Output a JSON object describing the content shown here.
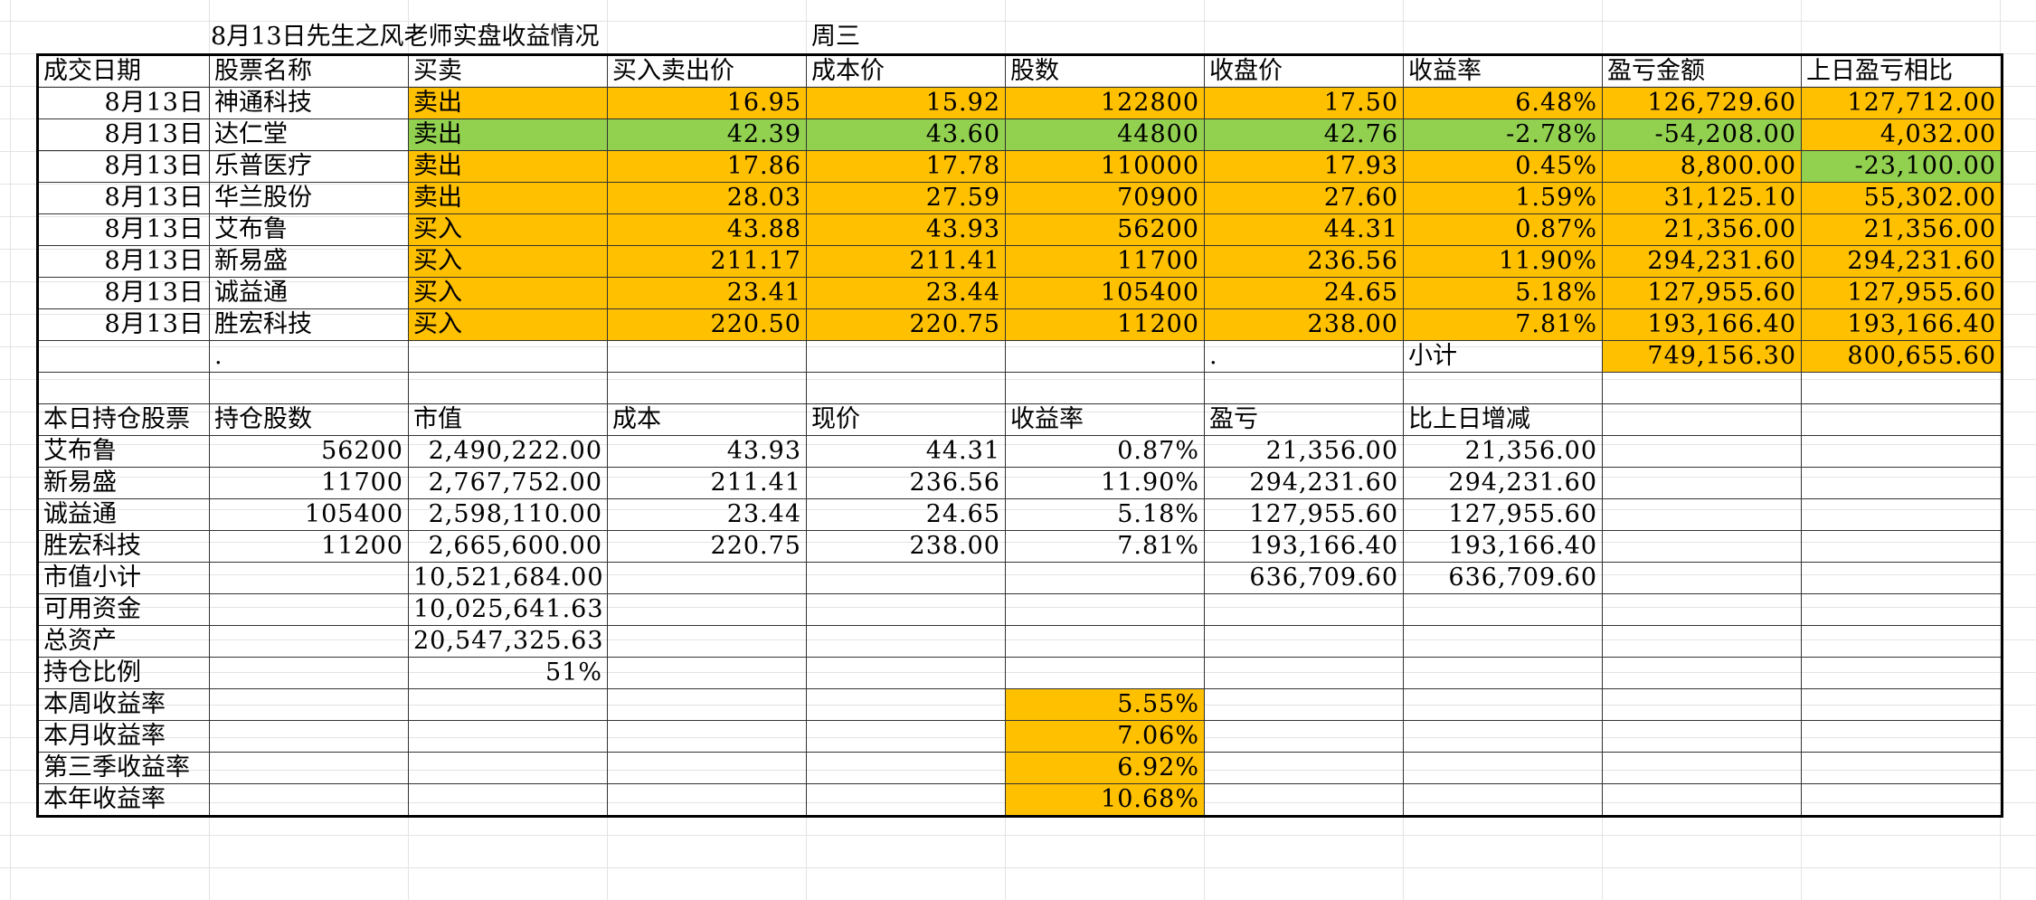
{
  "title": {
    "text": "8月13日先生之风老师实盘收益情况",
    "weekday": "周三"
  },
  "trade_headers": [
    "成交日期",
    "股票名称",
    "买卖",
    "买入卖出价",
    "成本价",
    "股数",
    "收盘价",
    "收益率",
    "盈亏金额",
    "上日盈亏相比"
  ],
  "trades": [
    {
      "date": "8月13日",
      "name": "神通科技",
      "side": "卖出",
      "price": "16.95",
      "cost": "15.92",
      "shares": "122800",
      "close": "17.50",
      "rate": "6.48%",
      "pnl": "126,729.60",
      "prev": "127,712.00"
    },
    {
      "date": "8月13日",
      "name": "达仁堂",
      "side": "卖出",
      "price": "42.39",
      "cost": "43.60",
      "shares": "44800",
      "close": "42.76",
      "rate": "-2.78%",
      "pnl": "-54,208.00",
      "prev": "4,032.00"
    },
    {
      "date": "8月13日",
      "name": "乐普医疗",
      "side": "卖出",
      "price": "17.86",
      "cost": "17.78",
      "shares": "110000",
      "close": "17.93",
      "rate": "0.45%",
      "pnl": "8,800.00",
      "prev": "-23,100.00"
    },
    {
      "date": "8月13日",
      "name": "华兰股份",
      "side": "卖出",
      "price": "28.03",
      "cost": "27.59",
      "shares": "70900",
      "close": "27.60",
      "rate": "1.59%",
      "pnl": "31,125.10",
      "prev": "55,302.00"
    },
    {
      "date": "8月13日",
      "name": "艾布鲁",
      "side": "买入",
      "price": "43.88",
      "cost": "43.93",
      "shares": "56200",
      "close": "44.31",
      "rate": "0.87%",
      "pnl": "21,356.00",
      "prev": "21,356.00"
    },
    {
      "date": "8月13日",
      "name": "新易盛",
      "side": "买入",
      "price": "211.17",
      "cost": "211.41",
      "shares": "11700",
      "close": "236.56",
      "rate": "11.90%",
      "pnl": "294,231.60",
      "prev": "294,231.60"
    },
    {
      "date": "8月13日",
      "name": "诚益通",
      "side": "买入",
      "price": "23.41",
      "cost": "23.44",
      "shares": "105400",
      "close": "24.65",
      "rate": "5.18%",
      "pnl": "127,955.60",
      "prev": "127,955.60"
    },
    {
      "date": "8月13日",
      "name": "胜宏科技",
      "side": "买入",
      "price": "220.50",
      "cost": "220.75",
      "shares": "11200",
      "close": "238.00",
      "rate": "7.81%",
      "pnl": "193,166.40",
      "prev": "193,166.40"
    }
  ],
  "subtotal": {
    "label": "小计",
    "pnl": "749,156.30",
    "prev": "800,655.60",
    "dot1": ".",
    "dot2": "."
  },
  "hold_headers": [
    "本日持仓股票",
    "持仓股数",
    "市值",
    "成本",
    "现价",
    "收益率",
    "盈亏",
    "比上日增减"
  ],
  "holdings": [
    {
      "name": "艾布鲁",
      "shares": "56200",
      "value": "2,490,222.00",
      "cost": "43.93",
      "price": "44.31",
      "rate": "0.87%",
      "pnl": "21,356.00",
      "change": "21,356.00"
    },
    {
      "name": "新易盛",
      "shares": "11700",
      "value": "2,767,752.00",
      "cost": "211.41",
      "price": "236.56",
      "rate": "11.90%",
      "pnl": "294,231.60",
      "change": "294,231.60"
    },
    {
      "name": "诚益通",
      "shares": "105400",
      "value": "2,598,110.00",
      "cost": "23.44",
      "price": "24.65",
      "rate": "5.18%",
      "pnl": "127,955.60",
      "change": "127,955.60"
    },
    {
      "name": "胜宏科技",
      "shares": "11200",
      "value": "2,665,600.00",
      "cost": "220.75",
      "price": "238.00",
      "rate": "7.81%",
      "pnl": "193,166.40",
      "change": "193,166.40"
    }
  ],
  "summary": {
    "market_value": {
      "label": "市值小计",
      "value": "10,521,684.00",
      "pnl": "636,709.60",
      "change": "636,709.60"
    },
    "cash": {
      "label": "可用资金",
      "value": "10,025,641.63"
    },
    "total": {
      "label": "总资产",
      "value": "20,547,325.63"
    },
    "ratio": {
      "label": "持仓比例",
      "value": "51%"
    }
  },
  "returns": [
    {
      "label": "本周收益率",
      "value": "5.55%"
    },
    {
      "label": "本月收益率",
      "value": "7.06%"
    },
    {
      "label": "第三季收益率",
      "value": "6.92%"
    },
    {
      "label": "本年收益率",
      "value": "10.68%"
    }
  ],
  "colors": {
    "highlight_orange": "#ffc000",
    "highlight_green": "#92d050"
  }
}
